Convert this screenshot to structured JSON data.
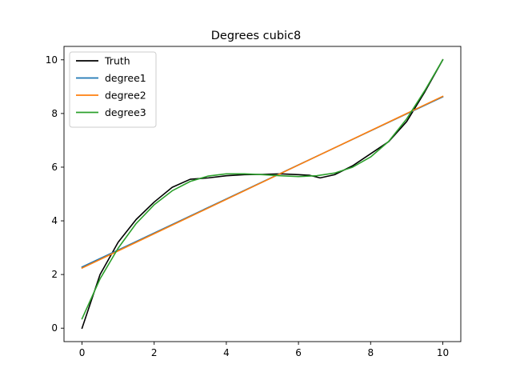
{
  "chart_data": {
    "type": "line",
    "title": "Degrees cubic8",
    "xlabel": "",
    "ylabel": "",
    "xlim": [
      -0.5,
      10.5
    ],
    "ylim": [
      -0.5,
      10.5
    ],
    "xticks": [
      0,
      2,
      4,
      6,
      8,
      10
    ],
    "yticks": [
      0,
      2,
      4,
      6,
      8,
      10
    ],
    "grid": false,
    "legend_position": "top-left",
    "series": [
      {
        "name": "Truth",
        "color": "#000000",
        "x": [
          0,
          0.5,
          1,
          1.5,
          2,
          2.5,
          3,
          3.5,
          4,
          4.5,
          5,
          5.5,
          6,
          6.3,
          6.6,
          7,
          7.5,
          8,
          8.5,
          9,
          9.5,
          10
        ],
        "y": [
          0,
          2.0,
          3.2,
          4.05,
          4.7,
          5.25,
          5.55,
          5.6,
          5.68,
          5.72,
          5.73,
          5.75,
          5.72,
          5.7,
          5.6,
          5.72,
          6.05,
          6.5,
          6.95,
          7.7,
          8.8,
          10.0
        ]
      },
      {
        "name": "degree1",
        "color": "#1f77b4",
        "x": [
          0,
          10
        ],
        "y": [
          2.28,
          8.62
        ]
      },
      {
        "name": "degree2",
        "color": "#ff7f0e",
        "x": [
          0,
          10
        ],
        "y": [
          2.24,
          8.64
        ]
      },
      {
        "name": "degree3",
        "color": "#2ca02c",
        "x": [
          0,
          0.5,
          1,
          1.5,
          2,
          2.5,
          3,
          3.5,
          4,
          4.5,
          5,
          5.5,
          6,
          6.5,
          7,
          7.5,
          8,
          8.5,
          9,
          9.5,
          10
        ],
        "y": [
          0.35,
          1.84,
          2.98,
          3.9,
          4.6,
          5.12,
          5.47,
          5.67,
          5.75,
          5.75,
          5.72,
          5.68,
          5.65,
          5.68,
          5.78,
          6.0,
          6.38,
          6.96,
          7.8,
          8.85,
          10.0
        ]
      }
    ]
  }
}
